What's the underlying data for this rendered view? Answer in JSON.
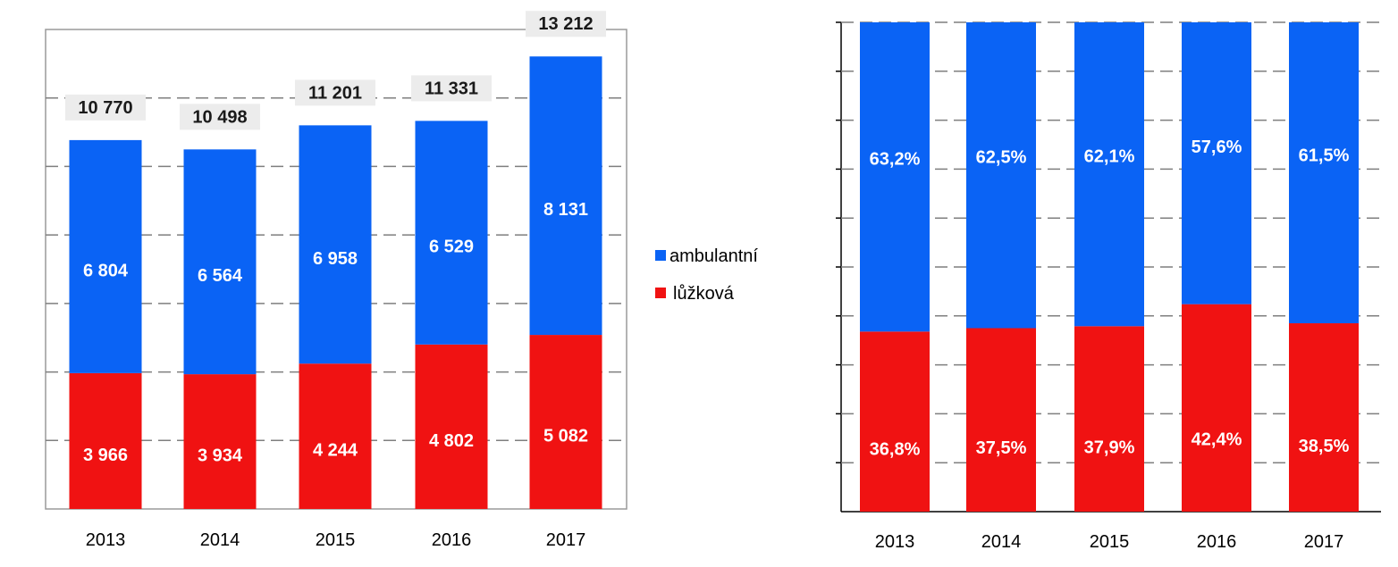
{
  "colors": {
    "ambulantni": "#0a63f5",
    "luzkova": "#f01212",
    "grid": "#7f7f7f",
    "label_box": "#ececec"
  },
  "legend": {
    "items": [
      {
        "label": "ambulantní",
        "color": "#0a63f5"
      },
      {
        "label": "lůžková",
        "color": "#f01212"
      }
    ]
  },
  "chart_data": [
    {
      "type": "bar",
      "stacked": true,
      "categories": [
        "2013",
        "2014",
        "2015",
        "2016",
        "2017"
      ],
      "series": [
        {
          "name": "lůžková",
          "values": [
            3966,
            3934,
            4244,
            4802,
            5082
          ],
          "labels": [
            "3 966",
            "3 934",
            "4 244",
            "4 802",
            "5 082"
          ]
        },
        {
          "name": "ambulantní",
          "values": [
            6804,
            6564,
            6958,
            6529,
            8131
          ],
          "labels": [
            "6 804",
            "6 564",
            "6 958",
            "6 529",
            "8 131"
          ]
        }
      ],
      "totals": [
        10770,
        10498,
        11201,
        11331,
        13212
      ],
      "total_labels": [
        "10 770",
        "10 498",
        "11 201",
        "11 331",
        "13 212"
      ],
      "ylim": [
        0,
        14000
      ],
      "gridlines": true
    },
    {
      "type": "bar",
      "stacked": true,
      "percent": true,
      "categories": [
        "2013",
        "2014",
        "2015",
        "2016",
        "2017"
      ],
      "series": [
        {
          "name": "lůžková",
          "values": [
            36.8,
            37.5,
            37.9,
            42.4,
            38.5
          ],
          "labels": [
            "36,8%",
            "37,5%",
            "37,9%",
            "42,4%",
            "38,5%"
          ]
        },
        {
          "name": "ambulantní",
          "values": [
            63.2,
            62.5,
            62.1,
            57.6,
            61.5
          ],
          "labels": [
            "63,2%",
            "62,5%",
            "62,1%",
            "57,6%",
            "61,5%"
          ]
        }
      ],
      "ylim": [
        0,
        100
      ],
      "gridlines": true
    }
  ]
}
